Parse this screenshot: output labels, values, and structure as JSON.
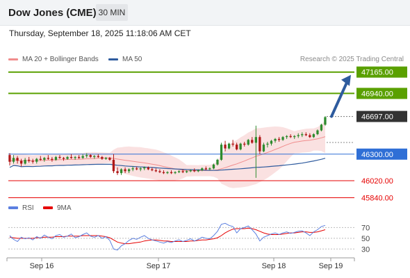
{
  "header": {
    "title": "Dow Jones (CME)",
    "timeframe": "30 MIN",
    "datetime": "Thursday, September 18, 2025 11:18:06 AM CET"
  },
  "legend": {
    "bollinger": {
      "label": "MA 20 + Bollinger Bands",
      "color": "#f08c8c"
    },
    "ma50": {
      "label": "MA 50",
      "color": "#2e5b9e"
    },
    "credit": "Research © 2025 Trading Central"
  },
  "chart_data": {
    "type": "candlestick",
    "price_range": [
      45800,
      47280
    ],
    "levels": [
      {
        "value": 47165,
        "label": "47165.00",
        "kind": "resistance",
        "color": "#5aa000"
      },
      {
        "value": 46940,
        "label": "46940.00",
        "kind": "resistance",
        "color": "#5aa000"
      },
      {
        "value": 46697,
        "label": "46697.00",
        "kind": "last-price",
        "color": "#333333"
      },
      {
        "value": 46300,
        "label": "46300.00",
        "kind": "pivot",
        "color": "#2f6fd6"
      },
      {
        "value": 46020,
        "label": "46020.00",
        "kind": "support",
        "color": "#e60000"
      },
      {
        "value": 45840,
        "label": "45840.00",
        "kind": "support",
        "color": "#e60000"
      }
    ],
    "target_arrow": {
      "from": 46697,
      "to": 47165,
      "color": "#2e5b9e"
    },
    "candles": [
      [
        46290,
        46310,
        46180,
        46220
      ],
      [
        46220,
        46290,
        46200,
        46260
      ],
      [
        46260,
        46280,
        46200,
        46230
      ],
      [
        46230,
        46250,
        46170,
        46200
      ],
      [
        46200,
        46260,
        46190,
        46240
      ],
      [
        46240,
        46270,
        46210,
        46230
      ],
      [
        46230,
        46250,
        46200,
        46220
      ],
      [
        46220,
        46260,
        46200,
        46250
      ],
      [
        46250,
        46280,
        46230,
        46240
      ],
      [
        46240,
        46270,
        46220,
        46260
      ],
      [
        46260,
        46290,
        46240,
        46250
      ],
      [
        46250,
        46270,
        46220,
        46240
      ],
      [
        46240,
        46280,
        46230,
        46270
      ],
      [
        46270,
        46290,
        46250,
        46260
      ],
      [
        46260,
        46270,
        46230,
        46250
      ],
      [
        46250,
        46280,
        46240,
        46270
      ],
      [
        46270,
        46300,
        46250,
        46260
      ],
      [
        46260,
        46280,
        46240,
        46270
      ],
      [
        46270,
        46290,
        46250,
        46260
      ],
      [
        46260,
        46300,
        46250,
        46280
      ],
      [
        46280,
        46310,
        46260,
        46290
      ],
      [
        46290,
        46300,
        46260,
        46270
      ],
      [
        46270,
        46290,
        46250,
        46280
      ],
      [
        46280,
        46300,
        46260,
        46270
      ],
      [
        46270,
        46280,
        46240,
        46250
      ],
      [
        46250,
        46270,
        46240,
        46260
      ],
      [
        46260,
        46270,
        46230,
        46240
      ],
      [
        46240,
        46300,
        46100,
        46120
      ],
      [
        46120,
        46160,
        46080,
        46100
      ],
      [
        46100,
        46150,
        46080,
        46140
      ],
      [
        46140,
        46160,
        46100,
        46120
      ],
      [
        46120,
        46150,
        46100,
        46140
      ],
      [
        46140,
        46170,
        46120,
        46150
      ],
      [
        46150,
        46170,
        46130,
        46140
      ],
      [
        46140,
        46160,
        46120,
        46150
      ],
      [
        46150,
        46170,
        46130,
        46160
      ],
      [
        46160,
        46170,
        46130,
        46140
      ],
      [
        46140,
        46160,
        46120,
        46130
      ],
      [
        46130,
        46150,
        46110,
        46120
      ],
      [
        46120,
        46140,
        46100,
        46110
      ],
      [
        46110,
        46130,
        46090,
        46100
      ],
      [
        46100,
        46120,
        46090,
        46110
      ],
      [
        46110,
        46130,
        46090,
        46100
      ],
      [
        46100,
        46120,
        46090,
        46110
      ],
      [
        46110,
        46130,
        46100,
        46120
      ],
      [
        46120,
        46140,
        46100,
        46110
      ],
      [
        46110,
        46130,
        46100,
        46120
      ],
      [
        46120,
        46140,
        46110,
        46130
      ],
      [
        46130,
        46150,
        46110,
        46120
      ],
      [
        46120,
        46140,
        46110,
        46130
      ],
      [
        46130,
        46160,
        46120,
        46150
      ],
      [
        46150,
        46170,
        46130,
        46140
      ],
      [
        46140,
        46160,
        46130,
        46150
      ],
      [
        46150,
        46200,
        46140,
        46190
      ],
      [
        46190,
        46250,
        46180,
        46240
      ],
      [
        46240,
        46420,
        46230,
        46400
      ],
      [
        46400,
        46440,
        46330,
        46360
      ],
      [
        46360,
        46420,
        46350,
        46410
      ],
      [
        46410,
        46450,
        46380,
        46400
      ],
      [
        46400,
        46420,
        46340,
        46350
      ],
      [
        46350,
        46420,
        46340,
        46410
      ],
      [
        46410,
        46430,
        46380,
        46400
      ],
      [
        46400,
        46460,
        46390,
        46450
      ],
      [
        46450,
        46480,
        46410,
        46420
      ],
      [
        46420,
        46600,
        46050,
        46480
      ],
      [
        46480,
        46500,
        46300,
        46330
      ],
      [
        46330,
        46420,
        46320,
        46400
      ],
      [
        46400,
        46430,
        46370,
        46410
      ],
      [
        46410,
        46450,
        46390,
        46440
      ],
      [
        46440,
        46470,
        46420,
        46460
      ],
      [
        46460,
        46480,
        46430,
        46450
      ],
      [
        46450,
        46490,
        46440,
        46480
      ],
      [
        46480,
        46500,
        46460,
        46490
      ],
      [
        46490,
        46510,
        46470,
        46480
      ],
      [
        46480,
        46500,
        46460,
        46490
      ],
      [
        46490,
        46520,
        46470,
        46500
      ],
      [
        46500,
        46530,
        46480,
        46510
      ],
      [
        46510,
        46530,
        46490,
        46500
      ],
      [
        46500,
        46520,
        46470,
        46480
      ],
      [
        46480,
        46520,
        46470,
        46510
      ],
      [
        46510,
        46560,
        46500,
        46550
      ],
      [
        46550,
        46620,
        46540,
        46610
      ],
      [
        46610,
        46700,
        46600,
        46690
      ]
    ],
    "x_ticks": [
      "Sep 16",
      "Sep 17",
      "Sep 18",
      "Sep 19"
    ],
    "rsi": {
      "legend": [
        {
          "label": "RSI",
          "color": "#5b7fe0"
        },
        {
          "label": "9MA",
          "color": "#e60000"
        }
      ],
      "y_ticks": [
        70,
        50,
        30
      ],
      "range": [
        20,
        90
      ],
      "rsi_values": [
        55,
        48,
        44,
        52,
        49,
        51,
        47,
        53,
        50,
        56,
        52,
        49,
        55,
        57,
        52,
        54,
        58,
        51,
        53,
        57,
        60,
        54,
        52,
        55,
        50,
        53,
        46,
        30,
        28,
        36,
        40,
        46,
        50,
        48,
        52,
        55,
        50,
        47,
        45,
        43,
        41,
        44,
        42,
        45,
        47,
        44,
        46,
        49,
        45,
        48,
        52,
        50,
        49,
        55,
        63,
        76,
        78,
        74,
        72,
        60,
        68,
        70,
        73,
        66,
        58,
        45,
        52,
        55,
        58,
        60,
        57,
        60,
        62,
        59,
        61,
        63,
        64,
        60,
        55,
        62,
        66,
        72,
        74
      ],
      "ma_values": [
        52,
        51,
        50,
        50,
        50,
        50,
        50,
        51,
        51,
        52,
        52,
        52,
        53,
        53,
        53,
        54,
        54,
        54,
        54,
        55,
        55,
        55,
        55,
        55,
        54,
        53,
        51,
        47,
        43,
        41,
        40,
        40,
        41,
        42,
        43,
        45,
        46,
        47,
        47,
        46,
        45,
        45,
        44,
        44,
        44,
        44,
        44,
        45,
        45,
        46,
        47,
        47,
        48,
        49,
        51,
        55,
        60,
        64,
        67,
        68,
        68,
        68,
        69,
        68,
        66,
        63,
        60,
        58,
        57,
        57,
        57,
        58,
        59,
        60,
        60,
        61,
        62,
        62,
        61,
        61,
        62,
        64,
        66
      ]
    }
  }
}
